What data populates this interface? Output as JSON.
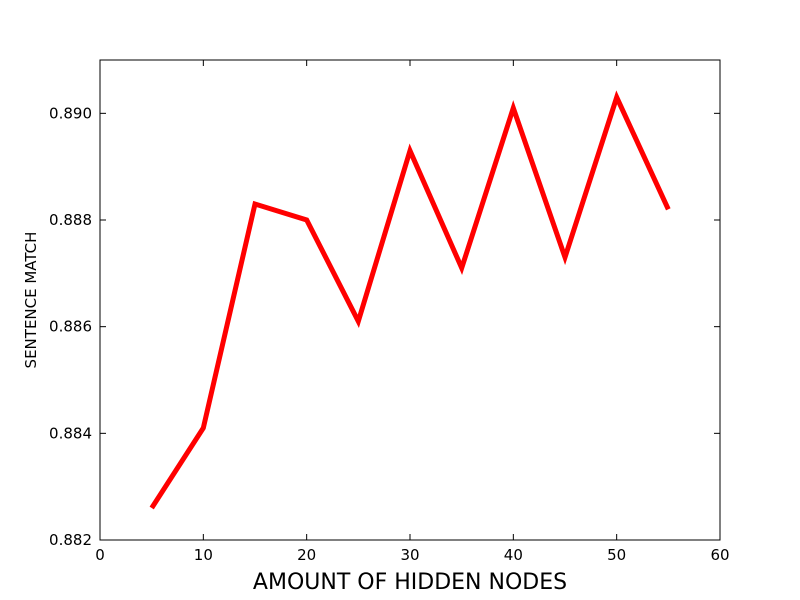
{
  "chart_data": {
    "type": "line",
    "title": "",
    "xlabel": "AMOUNT OF HIDDEN NODES",
    "ylabel": "SENTENCE MATCH",
    "xlim": [
      0,
      60
    ],
    "ylim": [
      0.882,
      0.891
    ],
    "xticks": [
      "0",
      "10",
      "20",
      "30",
      "40",
      "50",
      "60"
    ],
    "yticks": [
      "0.882",
      "0.884",
      "0.886",
      "0.888",
      "0.890"
    ],
    "grid": false,
    "series": [
      {
        "color": "#ff0000",
        "x": [
          5,
          10,
          15,
          20,
          25,
          30,
          35,
          40,
          45,
          50,
          55
        ],
        "y": [
          0.8826,
          0.8841,
          0.8883,
          0.888,
          0.8861,
          0.8893,
          0.8871,
          0.8901,
          0.8873,
          0.8903,
          0.8882
        ]
      }
    ]
  }
}
